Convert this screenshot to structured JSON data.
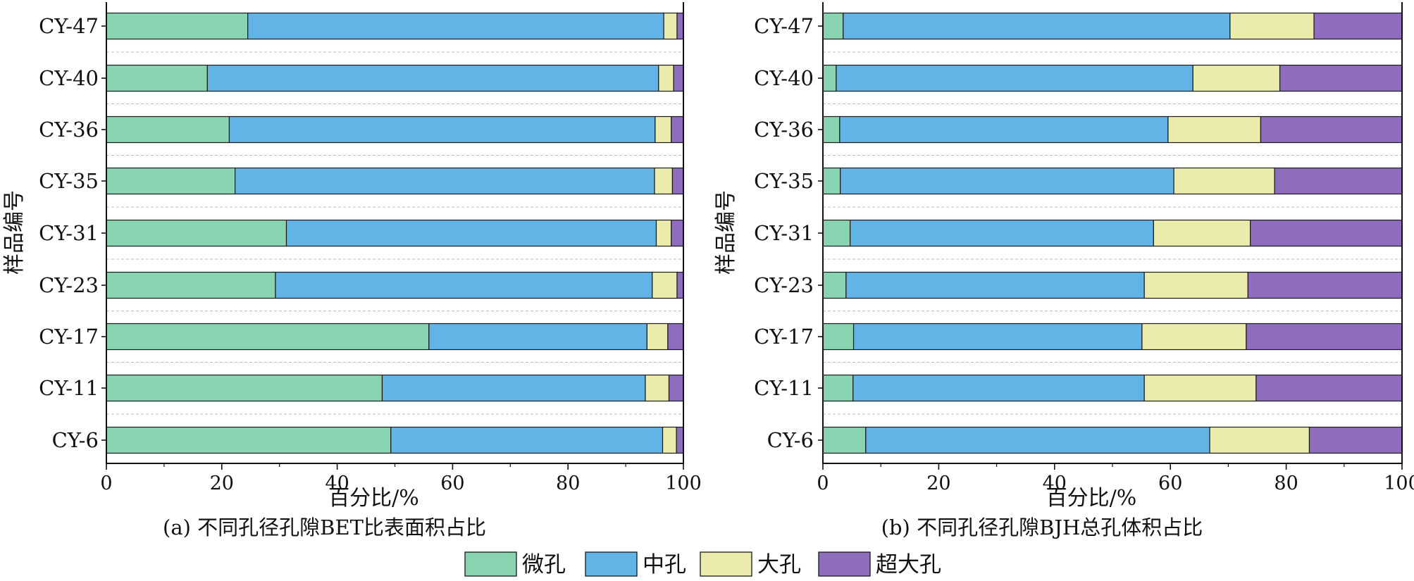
{
  "colors": {
    "micro": "#88d4b0",
    "meso": "#63b4e6",
    "macro": "#ebebab",
    "super": "#8e6cbe"
  },
  "legend": {
    "items": [
      "微孔",
      "中孔",
      "大孔",
      "超大孔"
    ]
  },
  "chart_data": [
    {
      "type": "bar",
      "orientation": "horizontal",
      "stacked": true,
      "caption": "(a) 不同孔径孔隙BET比表面积占比",
      "xlabel": "百分比/%",
      "ylabel": "样品编号",
      "xlim": [
        0,
        100
      ],
      "xticks": [
        "0",
        "20",
        "40",
        "60",
        "80",
        "100"
      ],
      "categories": [
        "CY-47",
        "CY-40",
        "CY-36",
        "CY-35",
        "CY-31",
        "CY-23",
        "CY-17",
        "CY-11",
        "CY-6"
      ],
      "grid": "horizontal dashed",
      "series": [
        {
          "name": "微孔",
          "values": [
            24.5,
            17.5,
            21.3,
            22.3,
            31.2,
            29.3,
            55.9,
            47.8,
            49.3
          ]
        },
        {
          "name": "中孔",
          "values": [
            72.1,
            78.2,
            73.8,
            72.7,
            64.1,
            65.3,
            37.8,
            45.6,
            47.1
          ]
        },
        {
          "name": "大孔",
          "values": [
            2.3,
            2.6,
            2.8,
            3.1,
            2.6,
            4.3,
            3.6,
            4.1,
            2.4
          ]
        },
        {
          "name": "超大孔",
          "values": [
            1.1,
            1.7,
            2.1,
            1.9,
            2.1,
            1.1,
            2.7,
            2.5,
            1.2
          ]
        }
      ]
    },
    {
      "type": "bar",
      "orientation": "horizontal",
      "stacked": true,
      "caption": "(b) 不同孔径孔隙BJH总孔体积占比",
      "xlabel": "百分比/%",
      "ylabel": "样品编号",
      "xlim": [
        0,
        100
      ],
      "xticks": [
        "0",
        "20",
        "40",
        "60",
        "80",
        "100"
      ],
      "categories": [
        "CY-47",
        "CY-40",
        "CY-36",
        "CY-35",
        "CY-31",
        "CY-23",
        "CY-17",
        "CY-11",
        "CY-6"
      ],
      "grid": "horizontal dashed",
      "series": [
        {
          "name": "微孔",
          "values": [
            3.5,
            2.3,
            2.9,
            3.0,
            4.7,
            4.0,
            5.3,
            5.2,
            7.4
          ]
        },
        {
          "name": "中孔",
          "values": [
            66.8,
            61.6,
            56.7,
            57.6,
            52.4,
            51.5,
            49.8,
            50.3,
            59.4
          ]
        },
        {
          "name": "大孔",
          "values": [
            14.5,
            15.0,
            16.0,
            17.4,
            16.7,
            17.9,
            18.0,
            19.3,
            17.2
          ]
        },
        {
          "name": "超大孔",
          "values": [
            15.2,
            21.1,
            24.4,
            22.0,
            26.2,
            26.6,
            26.9,
            25.2,
            16.0
          ]
        }
      ]
    }
  ]
}
